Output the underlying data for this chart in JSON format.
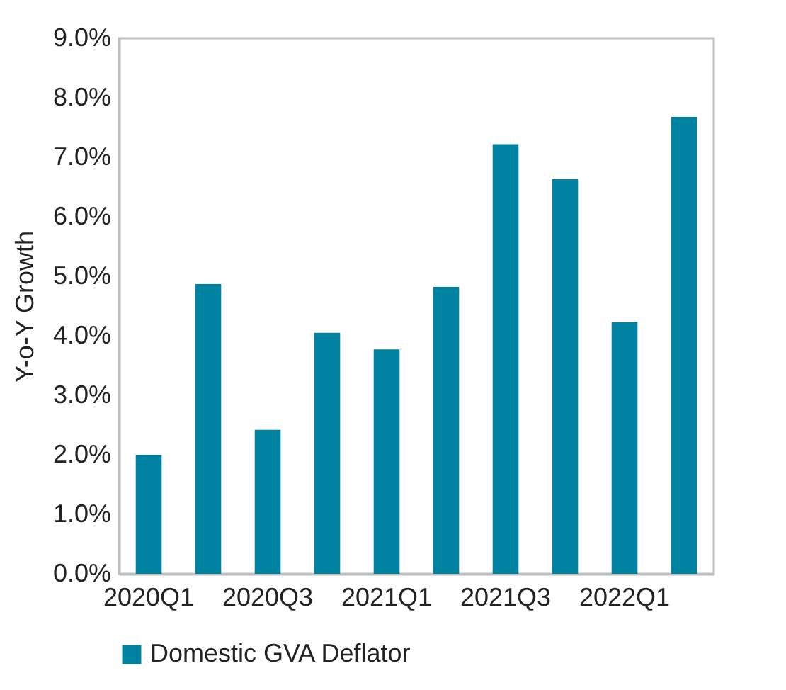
{
  "chart_data": {
    "type": "bar",
    "ylabel": "Y-o-Y Growth",
    "categories": [
      "2020Q1",
      null,
      "2020Q3",
      null,
      "2021Q1",
      null,
      "2021Q3",
      null,
      "2022Q1",
      null
    ],
    "series": [
      {
        "name": "Domestic GVA Deflator",
        "color": "#0083a0",
        "values": [
          2.0,
          4.87,
          2.42,
          4.05,
          3.77,
          4.82,
          7.22,
          6.63,
          4.23,
          7.68
        ]
      }
    ],
    "ylim": [
      0,
      9
    ],
    "yticks": [
      {
        "value": 0,
        "label": "0.0%"
      },
      {
        "value": 1,
        "label": "1.0%"
      },
      {
        "value": 2,
        "label": "2.0%"
      },
      {
        "value": 3,
        "label": "3.0%"
      },
      {
        "value": 4,
        "label": "4.0%"
      },
      {
        "value": 5,
        "label": "5.0%"
      },
      {
        "value": 6,
        "label": "6.0%"
      },
      {
        "value": 7,
        "label": "7.0%"
      },
      {
        "value": 8,
        "label": "8.0%"
      },
      {
        "value": 9,
        "label": "9.0%"
      }
    ],
    "grid": false,
    "legend": "bottom"
  }
}
